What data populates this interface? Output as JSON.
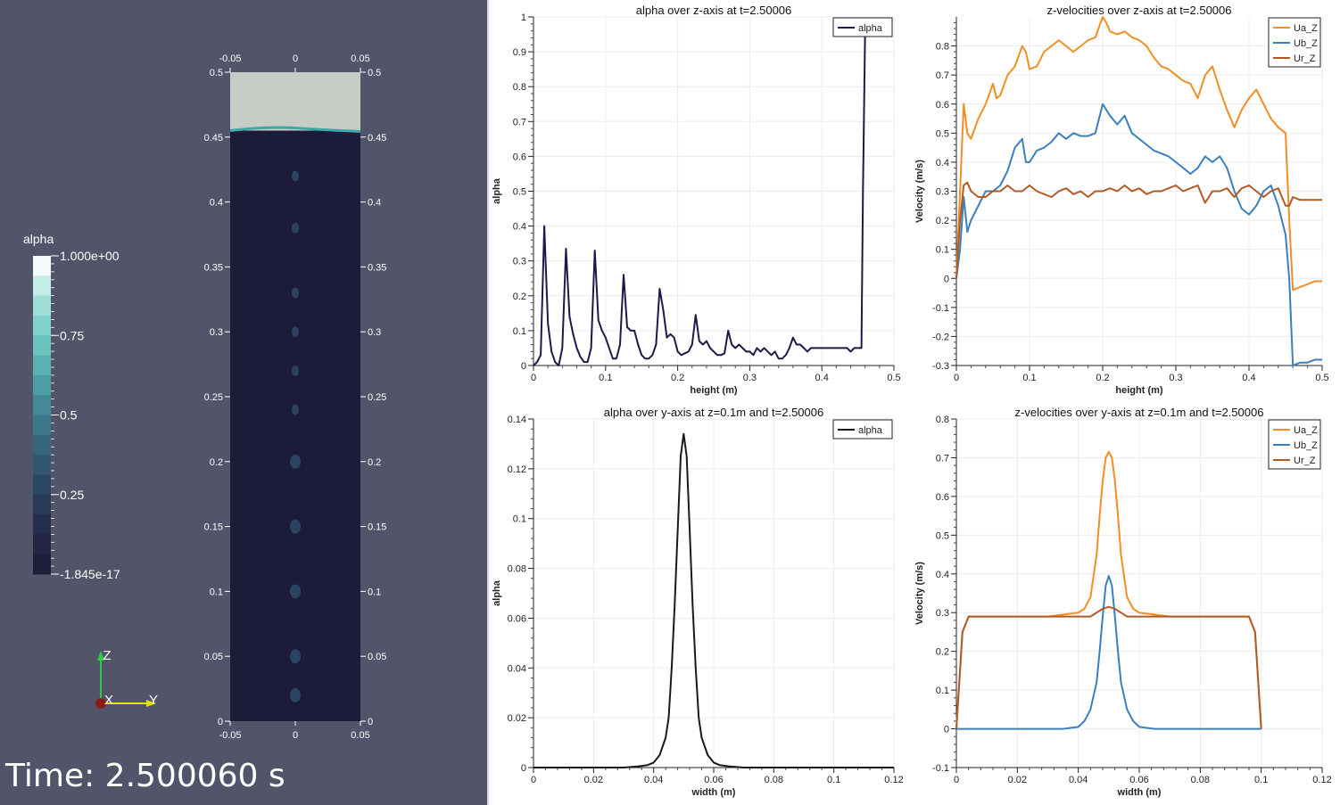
{
  "view3d": {
    "colorbar_title": "alpha",
    "colorbar_labels": [
      "1.000e+00",
      "0.75",
      "0.5",
      "0.25",
      "-1.845e-17"
    ],
    "time_label": "Time: 2.500060 s",
    "axes_triad": {
      "z": "Z",
      "x": "X",
      "y": "Y"
    },
    "domain_top_ticks": [
      "-0.05",
      "0",
      "0.05"
    ],
    "domain_bottom_ticks": [
      "-0.05",
      "0",
      "0.05"
    ],
    "domain_height_ticks": [
      "0",
      "0.05",
      "0.1",
      "0.15",
      "0.2",
      "0.25",
      "0.3",
      "0.35",
      "0.4",
      "0.45",
      "0.5"
    ],
    "domain_height_range": [
      0,
      0.5
    ],
    "interface_height": 0.455,
    "colors": {
      "background": "#525569",
      "liquid": "#1c1b3a",
      "gas": "#c5cdc4"
    }
  },
  "chart_data": [
    {
      "id": "chart1",
      "type": "line",
      "title": "alpha over z-axis at t=2.50006",
      "xlabel": "height (m)",
      "ylabel": "alpha",
      "xlim": [
        0,
        0.5
      ],
      "ylim": [
        0,
        1
      ],
      "xticks": [
        0,
        0.1,
        0.2,
        0.3,
        0.4,
        0.5
      ],
      "xtick_labels": [
        "0",
        "0.1",
        "0.2",
        "0.3",
        "0.4",
        "0.5"
      ],
      "yticks": [
        0,
        0.1,
        0.2,
        0.3,
        0.4,
        0.5,
        0.6,
        0.7,
        0.8,
        0.9,
        1
      ],
      "ytick_labels": [
        "0",
        "0.1",
        "0.2",
        "0.3",
        "0.4",
        "0.5",
        "0.6",
        "0.7",
        "0.8",
        "0.9",
        "1"
      ],
      "grid": true,
      "legend": "top-right",
      "series": [
        {
          "name": "alpha",
          "color": "#1b1b4a",
          "x": [
            0,
            0.005,
            0.01,
            0.015,
            0.02,
            0.025,
            0.03,
            0.035,
            0.04,
            0.045,
            0.05,
            0.055,
            0.06,
            0.065,
            0.07,
            0.075,
            0.08,
            0.085,
            0.09,
            0.095,
            0.1,
            0.105,
            0.11,
            0.115,
            0.12,
            0.125,
            0.13,
            0.135,
            0.14,
            0.145,
            0.15,
            0.155,
            0.16,
            0.165,
            0.17,
            0.175,
            0.18,
            0.185,
            0.19,
            0.195,
            0.2,
            0.205,
            0.21,
            0.215,
            0.22,
            0.225,
            0.23,
            0.235,
            0.24,
            0.245,
            0.25,
            0.255,
            0.26,
            0.265,
            0.27,
            0.275,
            0.28,
            0.285,
            0.29,
            0.295,
            0.3,
            0.305,
            0.31,
            0.315,
            0.32,
            0.325,
            0.33,
            0.335,
            0.34,
            0.345,
            0.35,
            0.355,
            0.36,
            0.365,
            0.37,
            0.375,
            0.38,
            0.385,
            0.39,
            0.395,
            0.4,
            0.405,
            0.41,
            0.415,
            0.42,
            0.425,
            0.43,
            0.435,
            0.44,
            0.445,
            0.45,
            0.455,
            0.457,
            0.46
          ],
          "y": [
            0,
            0.01,
            0.03,
            0.4,
            0.12,
            0.04,
            0.01,
            0.0,
            0.05,
            0.335,
            0.14,
            0.09,
            0.05,
            0.025,
            0.01,
            0.01,
            0.05,
            0.33,
            0.13,
            0.1,
            0.08,
            0.05,
            0.02,
            0.02,
            0.06,
            0.26,
            0.11,
            0.1,
            0.1,
            0.06,
            0.03,
            0.02,
            0.02,
            0.03,
            0.06,
            0.22,
            0.16,
            0.08,
            0.09,
            0.08,
            0.04,
            0.03,
            0.035,
            0.04,
            0.06,
            0.145,
            0.07,
            0.06,
            0.07,
            0.05,
            0.04,
            0.03,
            0.03,
            0.035,
            0.1,
            0.06,
            0.05,
            0.06,
            0.05,
            0.04,
            0.04,
            0.03,
            0.05,
            0.04,
            0.05,
            0.04,
            0.03,
            0.04,
            0.02,
            0.02,
            0.03,
            0.05,
            0.08,
            0.06,
            0.06,
            0.05,
            0.04,
            0.05,
            0.05,
            0.05,
            0.05,
            0.05,
            0.05,
            0.05,
            0.05,
            0.05,
            0.05,
            0.05,
            0.04,
            0.05,
            0.05,
            0.05,
            0.5,
            0.96
          ]
        }
      ]
    },
    {
      "id": "chart2",
      "type": "line",
      "title": "z-velocities over z-axis at t=2.50006",
      "xlabel": "height (m)",
      "ylabel": "Velocity (m/s)",
      "xlim": [
        0,
        0.5
      ],
      "ylim": [
        -0.3,
        0.9
      ],
      "xticks": [
        0,
        0.1,
        0.2,
        0.3,
        0.4,
        0.5
      ],
      "xtick_labels": [
        "0",
        "0.1",
        "0.2",
        "0.3",
        "0.4",
        "0.5"
      ],
      "yticks": [
        -0.3,
        -0.2,
        -0.1,
        0,
        0.1,
        0.2,
        0.3,
        0.4,
        0.5,
        0.6,
        0.7,
        0.8
      ],
      "ytick_labels": [
        "-0.3",
        "-0.2",
        "-0.1",
        "0",
        "0.1",
        "0.2",
        "0.3",
        "0.4",
        "0.5",
        "0.6",
        "0.7",
        "0.8"
      ],
      "grid": true,
      "legend": "top-right",
      "series": [
        {
          "name": "Ua_Z",
          "color": "#f28e24",
          "x": [
            0,
            0.005,
            0.01,
            0.015,
            0.02,
            0.03,
            0.04,
            0.05,
            0.055,
            0.06,
            0.07,
            0.08,
            0.09,
            0.095,
            0.1,
            0.11,
            0.12,
            0.13,
            0.14,
            0.15,
            0.16,
            0.17,
            0.18,
            0.19,
            0.2,
            0.205,
            0.21,
            0.22,
            0.23,
            0.24,
            0.25,
            0.26,
            0.27,
            0.28,
            0.29,
            0.3,
            0.31,
            0.32,
            0.33,
            0.34,
            0.35,
            0.36,
            0.37,
            0.38,
            0.39,
            0.4,
            0.41,
            0.42,
            0.43,
            0.44,
            0.45,
            0.455,
            0.46,
            0.47,
            0.48,
            0.49,
            0.5
          ],
          "y": [
            0,
            0.3,
            0.6,
            0.5,
            0.48,
            0.55,
            0.6,
            0.67,
            0.62,
            0.63,
            0.7,
            0.73,
            0.8,
            0.78,
            0.72,
            0.73,
            0.78,
            0.8,
            0.82,
            0.8,
            0.78,
            0.8,
            0.82,
            0.83,
            0.9,
            0.88,
            0.85,
            0.84,
            0.85,
            0.83,
            0.82,
            0.8,
            0.76,
            0.73,
            0.72,
            0.7,
            0.68,
            0.67,
            0.62,
            0.7,
            0.73,
            0.65,
            0.58,
            0.52,
            0.58,
            0.62,
            0.65,
            0.6,
            0.55,
            0.52,
            0.5,
            0.2,
            -0.04,
            -0.03,
            -0.02,
            -0.01,
            -0.01
          ]
        },
        {
          "name": "Ub_Z",
          "color": "#3a7fbf",
          "x": [
            0,
            0.005,
            0.01,
            0.015,
            0.02,
            0.03,
            0.04,
            0.05,
            0.06,
            0.07,
            0.08,
            0.09,
            0.095,
            0.1,
            0.11,
            0.12,
            0.13,
            0.14,
            0.15,
            0.16,
            0.17,
            0.18,
            0.19,
            0.2,
            0.205,
            0.21,
            0.22,
            0.23,
            0.24,
            0.25,
            0.26,
            0.27,
            0.28,
            0.29,
            0.3,
            0.31,
            0.32,
            0.33,
            0.34,
            0.35,
            0.36,
            0.37,
            0.38,
            0.39,
            0.4,
            0.41,
            0.42,
            0.43,
            0.44,
            0.45,
            0.455,
            0.46,
            0.47,
            0.48,
            0.49,
            0.5
          ],
          "y": [
            0,
            0.1,
            0.28,
            0.16,
            0.2,
            0.25,
            0.3,
            0.3,
            0.32,
            0.37,
            0.45,
            0.48,
            0.4,
            0.4,
            0.44,
            0.45,
            0.47,
            0.5,
            0.48,
            0.5,
            0.49,
            0.49,
            0.5,
            0.6,
            0.58,
            0.56,
            0.53,
            0.56,
            0.5,
            0.48,
            0.46,
            0.44,
            0.43,
            0.42,
            0.4,
            0.38,
            0.36,
            0.38,
            0.42,
            0.4,
            0.42,
            0.38,
            0.3,
            0.24,
            0.22,
            0.25,
            0.3,
            0.32,
            0.25,
            0.15,
            0.0,
            -0.3,
            -0.29,
            -0.29,
            -0.28,
            -0.28
          ]
        },
        {
          "name": "Ur_Z",
          "color": "#b05a27",
          "x": [
            0,
            0.005,
            0.01,
            0.015,
            0.02,
            0.03,
            0.04,
            0.05,
            0.06,
            0.07,
            0.08,
            0.09,
            0.1,
            0.11,
            0.12,
            0.13,
            0.14,
            0.15,
            0.16,
            0.17,
            0.18,
            0.19,
            0.2,
            0.21,
            0.22,
            0.23,
            0.24,
            0.25,
            0.26,
            0.27,
            0.28,
            0.29,
            0.3,
            0.31,
            0.32,
            0.33,
            0.34,
            0.35,
            0.36,
            0.37,
            0.38,
            0.39,
            0.4,
            0.41,
            0.42,
            0.43,
            0.44,
            0.45,
            0.455,
            0.46,
            0.47,
            0.48,
            0.49,
            0.5
          ],
          "y": [
            0,
            0.2,
            0.32,
            0.33,
            0.3,
            0.28,
            0.28,
            0.3,
            0.3,
            0.32,
            0.3,
            0.3,
            0.32,
            0.3,
            0.29,
            0.28,
            0.3,
            0.31,
            0.29,
            0.3,
            0.28,
            0.3,
            0.3,
            0.31,
            0.3,
            0.32,
            0.3,
            0.31,
            0.29,
            0.3,
            0.3,
            0.31,
            0.32,
            0.3,
            0.31,
            0.32,
            0.26,
            0.3,
            0.3,
            0.31,
            0.28,
            0.31,
            0.32,
            0.3,
            0.28,
            0.3,
            0.31,
            0.25,
            0.25,
            0.28,
            0.27,
            0.27,
            0.27,
            0.27
          ]
        }
      ]
    },
    {
      "id": "chart3",
      "type": "line",
      "title": "alpha over y-axis at z=0.1m and t=2.50006",
      "xlabel": "width (m)",
      "ylabel": "alpha",
      "xlim": [
        0,
        0.12
      ],
      "ylim": [
        0,
        0.14
      ],
      "xticks": [
        0,
        0.02,
        0.04,
        0.06,
        0.08,
        0.1,
        0.12
      ],
      "xtick_labels": [
        "0",
        "0.02",
        "0.04",
        "0.06",
        "0.08",
        "0.1",
        "0.12"
      ],
      "yticks": [
        0,
        0.02,
        0.04,
        0.06,
        0.08,
        0.1,
        0.12,
        0.14
      ],
      "ytick_labels": [
        "0",
        "0.02",
        "0.04",
        "0.06",
        "0.08",
        "0.1",
        "0.12",
        "0.14"
      ],
      "grid": true,
      "legend": "top-right",
      "series": [
        {
          "name": "alpha",
          "color": "#1a1a1a",
          "x": [
            0,
            0.01,
            0.02,
            0.03,
            0.035,
            0.038,
            0.04,
            0.042,
            0.044,
            0.045,
            0.046,
            0.047,
            0.048,
            0.049,
            0.05,
            0.051,
            0.052,
            0.053,
            0.054,
            0.055,
            0.056,
            0.058,
            0.06,
            0.062,
            0.065,
            0.07,
            0.08,
            0.09,
            0.1,
            0.11,
            0.12
          ],
          "y": [
            0,
            0,
            0,
            0,
            0.0005,
            0.001,
            0.002,
            0.005,
            0.012,
            0.02,
            0.04,
            0.065,
            0.095,
            0.125,
            0.134,
            0.125,
            0.095,
            0.065,
            0.04,
            0.02,
            0.012,
            0.005,
            0.002,
            0.001,
            0.0005,
            0,
            0,
            0,
            0,
            0,
            0
          ]
        }
      ]
    },
    {
      "id": "chart4",
      "type": "line",
      "title": "z-velocities over y-axis at z=0.1m and t=2.50006",
      "xlabel": "width (m)",
      "ylabel": "Velocity (m/s)",
      "xlim": [
        0,
        0.12
      ],
      "ylim": [
        -0.1,
        0.8
      ],
      "xticks": [
        0,
        0.02,
        0.04,
        0.06,
        0.08,
        0.1,
        0.12
      ],
      "xtick_labels": [
        "0",
        "0.02",
        "0.04",
        "0.06",
        "0.08",
        "0.1",
        "0.12"
      ],
      "yticks": [
        -0.1,
        0,
        0.1,
        0.2,
        0.3,
        0.4,
        0.5,
        0.6,
        0.7,
        0.8
      ],
      "ytick_labels": [
        "-0.1",
        "0",
        "0.1",
        "0.2",
        "0.3",
        "0.4",
        "0.5",
        "0.6",
        "0.7",
        "0.8"
      ],
      "grid": true,
      "legend": "top-right",
      "series": [
        {
          "name": "Ua_Z",
          "color": "#f28e24",
          "x": [
            0,
            0.002,
            0.004,
            0.01,
            0.02,
            0.03,
            0.04,
            0.042,
            0.044,
            0.046,
            0.047,
            0.048,
            0.049,
            0.05,
            0.051,
            0.052,
            0.053,
            0.054,
            0.056,
            0.058,
            0.06,
            0.07,
            0.08,
            0.09,
            0.096,
            0.098,
            0.1
          ],
          "y": [
            0,
            0.25,
            0.29,
            0.29,
            0.29,
            0.29,
            0.3,
            0.31,
            0.34,
            0.45,
            0.55,
            0.64,
            0.7,
            0.715,
            0.7,
            0.64,
            0.55,
            0.45,
            0.34,
            0.31,
            0.3,
            0.29,
            0.29,
            0.29,
            0.29,
            0.25,
            0
          ]
        },
        {
          "name": "Ub_Z",
          "color": "#3a7fbf",
          "x": [
            0,
            0.01,
            0.02,
            0.03,
            0.035,
            0.04,
            0.042,
            0.044,
            0.046,
            0.047,
            0.048,
            0.049,
            0.05,
            0.051,
            0.052,
            0.053,
            0.054,
            0.056,
            0.058,
            0.06,
            0.065,
            0.07,
            0.08,
            0.09,
            0.1
          ],
          "y": [
            0,
            0,
            0,
            0,
            0,
            0.005,
            0.02,
            0.05,
            0.12,
            0.2,
            0.29,
            0.37,
            0.395,
            0.37,
            0.29,
            0.2,
            0.12,
            0.05,
            0.02,
            0.005,
            0,
            0,
            0,
            0,
            0
          ]
        },
        {
          "name": "Ur_Z",
          "color": "#b05a27",
          "x": [
            0,
            0.002,
            0.004,
            0.01,
            0.02,
            0.03,
            0.04,
            0.044,
            0.046,
            0.048,
            0.05,
            0.052,
            0.054,
            0.056,
            0.06,
            0.07,
            0.08,
            0.09,
            0.096,
            0.098,
            0.1
          ],
          "y": [
            0,
            0.25,
            0.29,
            0.29,
            0.29,
            0.29,
            0.29,
            0.29,
            0.3,
            0.31,
            0.315,
            0.31,
            0.3,
            0.29,
            0.29,
            0.29,
            0.29,
            0.29,
            0.29,
            0.25,
            0
          ]
        }
      ]
    }
  ]
}
